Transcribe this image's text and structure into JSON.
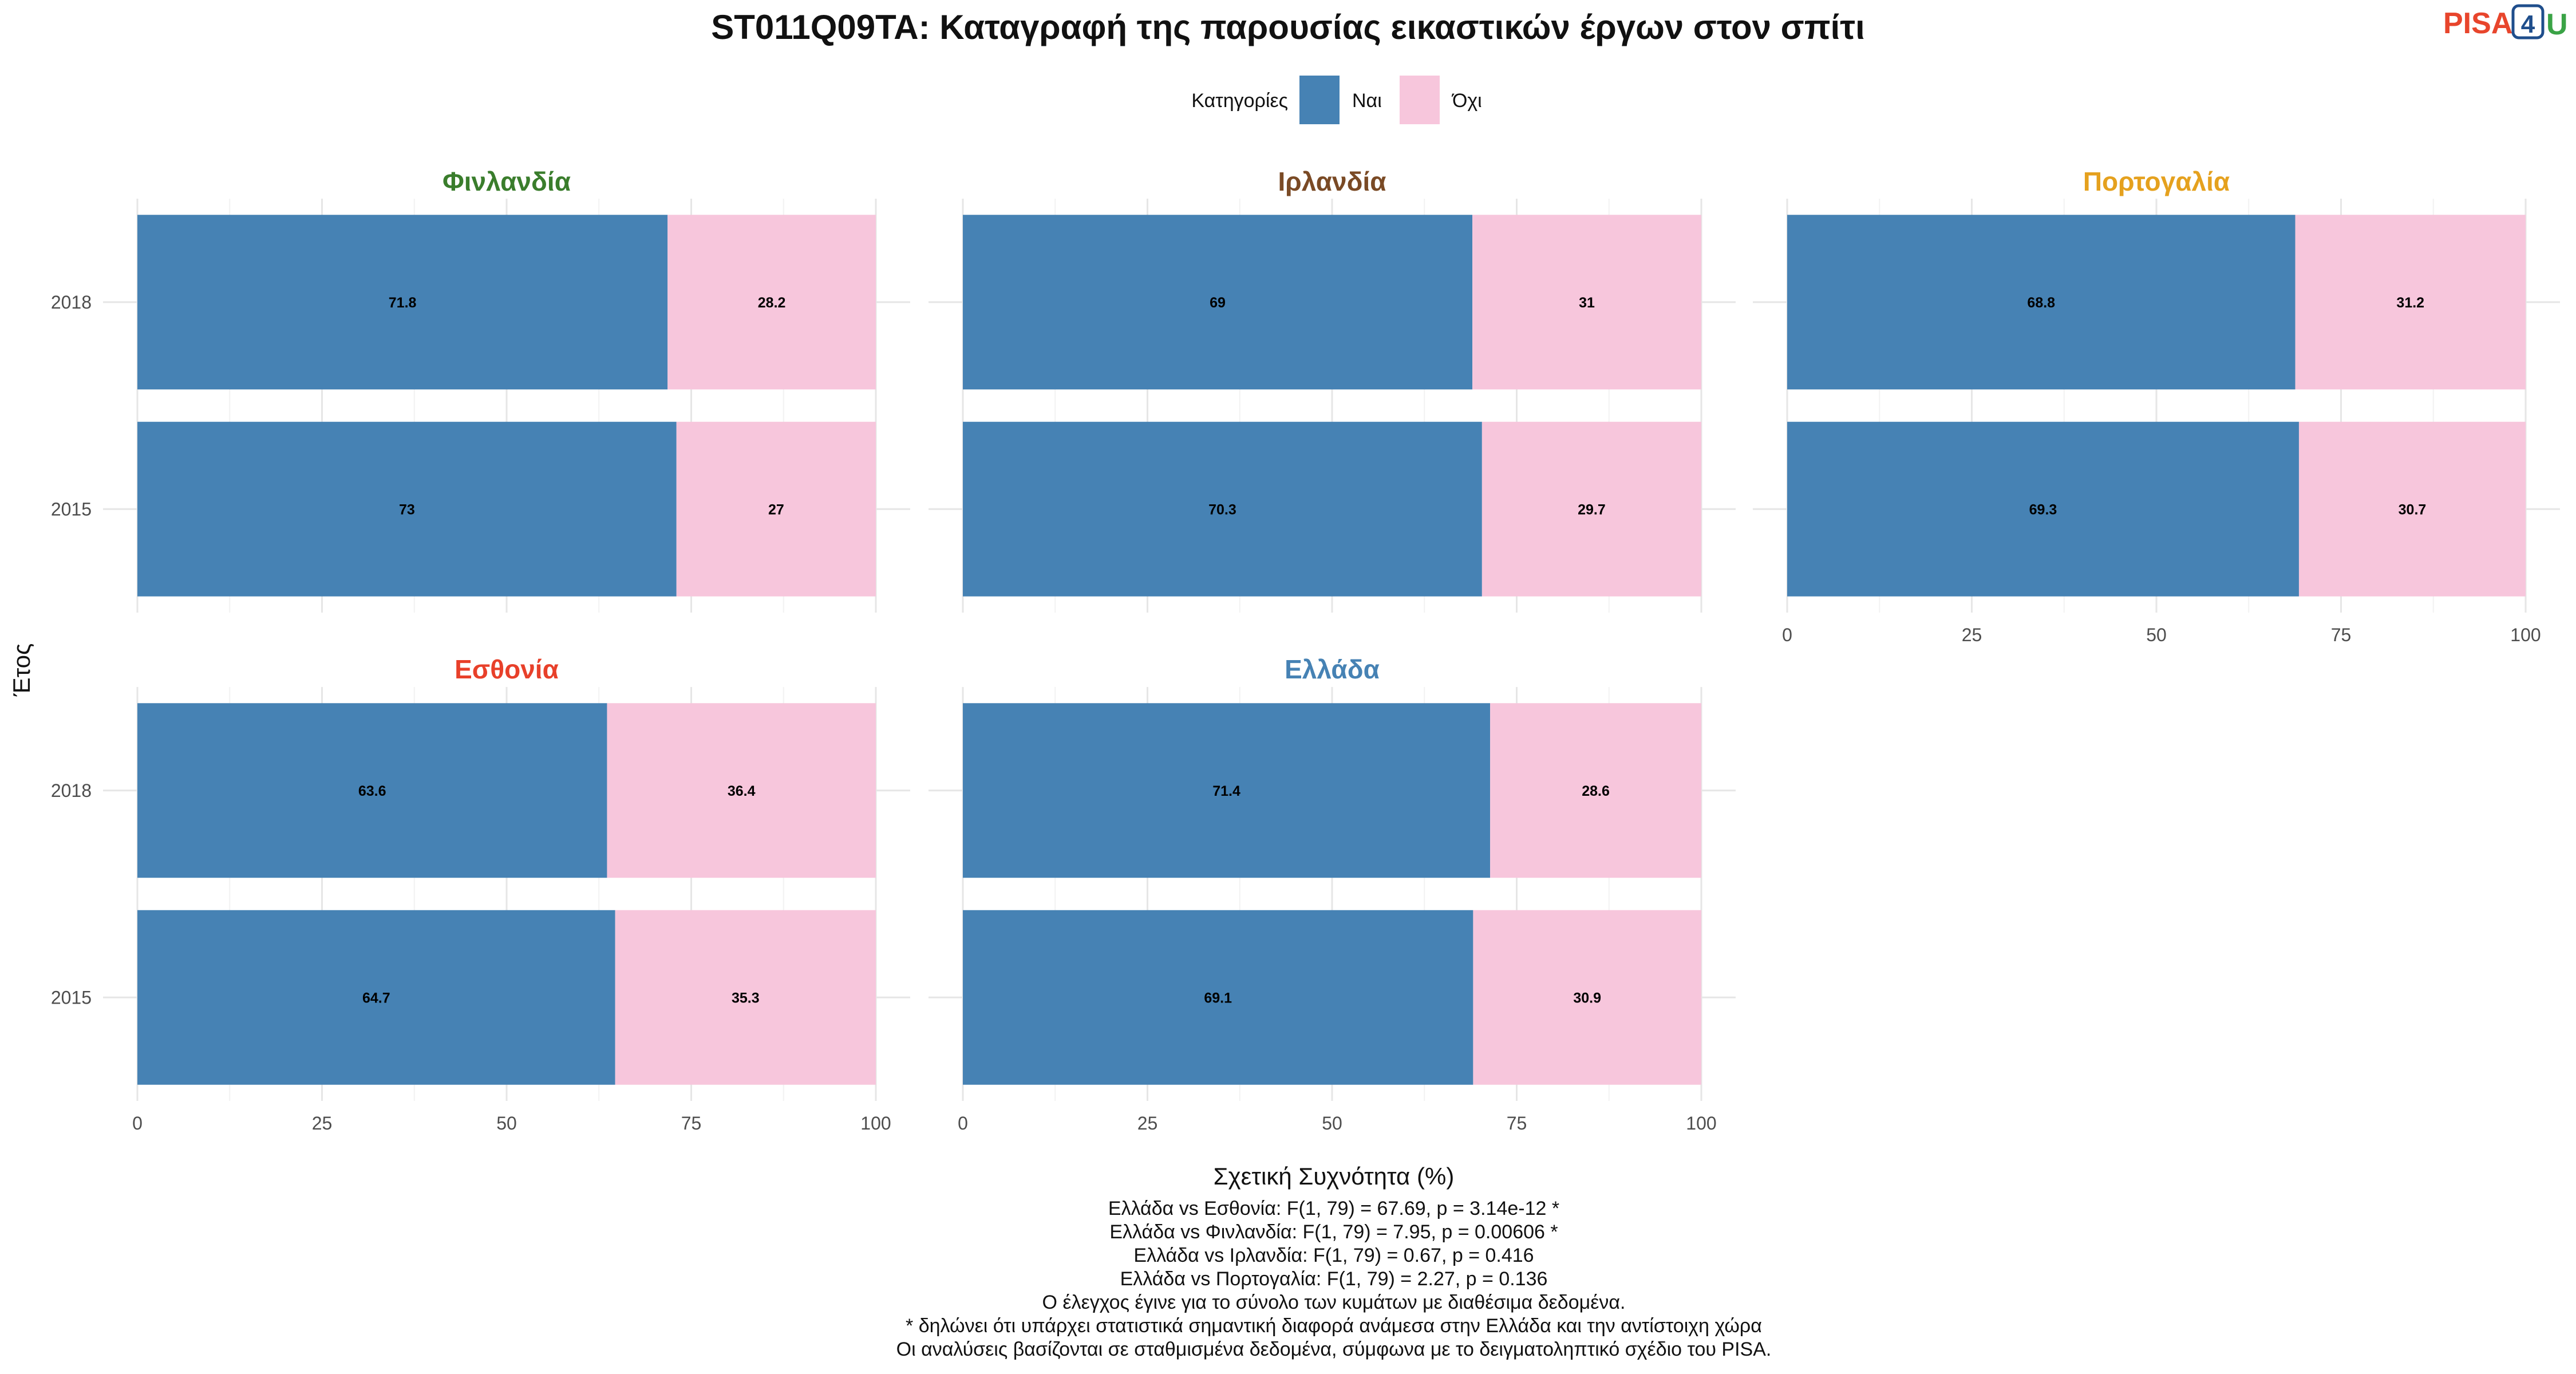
{
  "title": "ST011Q09TA: Καταγραφή της παρουσίας εικαστικών έργων στον σπίτι",
  "logo": {
    "part1": "PISA",
    "part2": "4",
    "part3": "U",
    "color1": "#e8452c",
    "color2": "#1f4e8c",
    "color3": "#3aa346"
  },
  "legend": {
    "title": "Κατηγορίες",
    "items": [
      {
        "label": "Ναι",
        "color": "#4682b4"
      },
      {
        "label": "Όχι",
        "color": "#f7c6dc"
      }
    ]
  },
  "chart_data": {
    "type": "bar",
    "orientation": "horizontal",
    "stacked": true,
    "xlabel": "Σχετική Συχνότητα (%)",
    "ylabel": "Έτος",
    "xlim": [
      0,
      100
    ],
    "xticks": [
      "0",
      "25",
      "50",
      "75",
      "100"
    ],
    "categories": [
      "2018",
      "2015"
    ],
    "series_names": [
      "Ναι",
      "Όχι"
    ],
    "facets": [
      {
        "name": "Φινλανδία",
        "color": "#3a7d2c",
        "values": {
          "2018": [
            71.8,
            28.2
          ],
          "2015": [
            73,
            27
          ]
        },
        "labels": {
          "2018": [
            "71.8",
            "28.2"
          ],
          "2015": [
            "73",
            "27"
          ]
        }
      },
      {
        "name": "Ιρλανδία",
        "color": "#7a4a25",
        "values": {
          "2018": [
            69,
            31
          ],
          "2015": [
            70.3,
            29.7
          ]
        },
        "labels": {
          "2018": [
            "69",
            "31"
          ],
          "2015": [
            "70.3",
            "29.7"
          ]
        }
      },
      {
        "name": "Πορτογαλία",
        "color": "#e5a11e",
        "values": {
          "2018": [
            68.8,
            31.2
          ],
          "2015": [
            69.3,
            30.7
          ]
        },
        "labels": {
          "2018": [
            "68.8",
            "31.2"
          ],
          "2015": [
            "69.3",
            "30.7"
          ]
        }
      },
      {
        "name": "Εσθονία",
        "color": "#e8402a",
        "values": {
          "2018": [
            63.6,
            36.4
          ],
          "2015": [
            64.7,
            35.3
          ]
        },
        "labels": {
          "2018": [
            "63.6",
            "36.4"
          ],
          "2015": [
            "64.7",
            "35.3"
          ]
        }
      },
      {
        "name": "Ελλάδα",
        "color": "#4682b4",
        "values": {
          "2018": [
            71.4,
            28.6
          ],
          "2015": [
            69.1,
            30.9
          ]
        },
        "labels": {
          "2018": [
            "71.4",
            "28.6"
          ],
          "2015": [
            "69.1",
            "30.9"
          ]
        }
      }
    ],
    "grid": true,
    "legend_position": "top"
  },
  "notes": [
    "Ελλάδα vs Εσθονία: F(1, 79) = 67.69, p = 3.14e-12 *",
    "Ελλάδα vs Φινλανδία: F(1, 79) = 7.95, p = 0.00606 *",
    "Ελλάδα vs Ιρλανδία: F(1, 79) = 0.67, p = 0.416",
    "Ελλάδα vs Πορτογαλία: F(1, 79) = 2.27, p = 0.136",
    "Ο έλεγχος έγινε για το σύνολο των κυμάτων με διαθέσιμα δεδομένα.",
    "* δηλώνει ότι υπάρχει στατιστικά σημαντική διαφορά ανάμεσα στην Ελλάδα και την αντίστοιχη χώρα",
    "Οι αναλύσεις βασίζονται σε σταθμισμένα δεδομένα, σύμφωνα με το δειγματοληπτικό σχέδιο του PISA."
  ]
}
